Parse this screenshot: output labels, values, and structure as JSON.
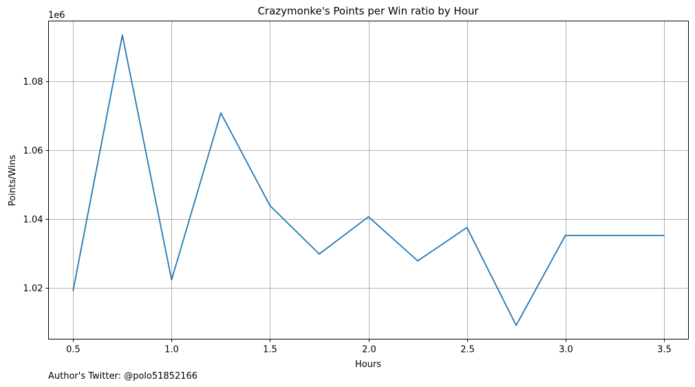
{
  "chart_data": {
    "type": "line",
    "title": "Crazymonke's Points per Win ratio by Hour",
    "xlabel": "Hours",
    "ylabel": "Points/Wins",
    "y_offset_label": "1e6",
    "footnote": "Author's Twitter: @polo51852166",
    "xlim": [
      0.375,
      3.625
    ],
    "ylim": [
      1.0052,
      1.0975
    ],
    "x_ticks": [
      0.5,
      1.0,
      1.5,
      2.0,
      2.5,
      3.0,
      3.5
    ],
    "x_tick_labels": [
      "0.5",
      "1.0",
      "1.5",
      "2.0",
      "2.5",
      "3.0",
      "3.5"
    ],
    "y_ticks": [
      1.02,
      1.04,
      1.06,
      1.08
    ],
    "y_tick_labels": [
      "1.02",
      "1.04",
      "1.06",
      "1.08"
    ],
    "grid": true,
    "line_color": "#1f77b4",
    "series": [
      {
        "x": [
          0.5,
          0.75,
          1.0,
          1.25,
          1.5,
          1.75,
          2.0,
          2.25,
          2.5,
          2.75,
          3.0,
          3.25,
          3.5
        ],
        "values": [
          1.0193,
          1.0934,
          1.0224,
          1.0708,
          1.0439,
          1.0299,
          1.0407,
          1.0279,
          1.0376,
          1.0092,
          1.0353,
          1.0353,
          1.0353
        ]
      }
    ]
  }
}
